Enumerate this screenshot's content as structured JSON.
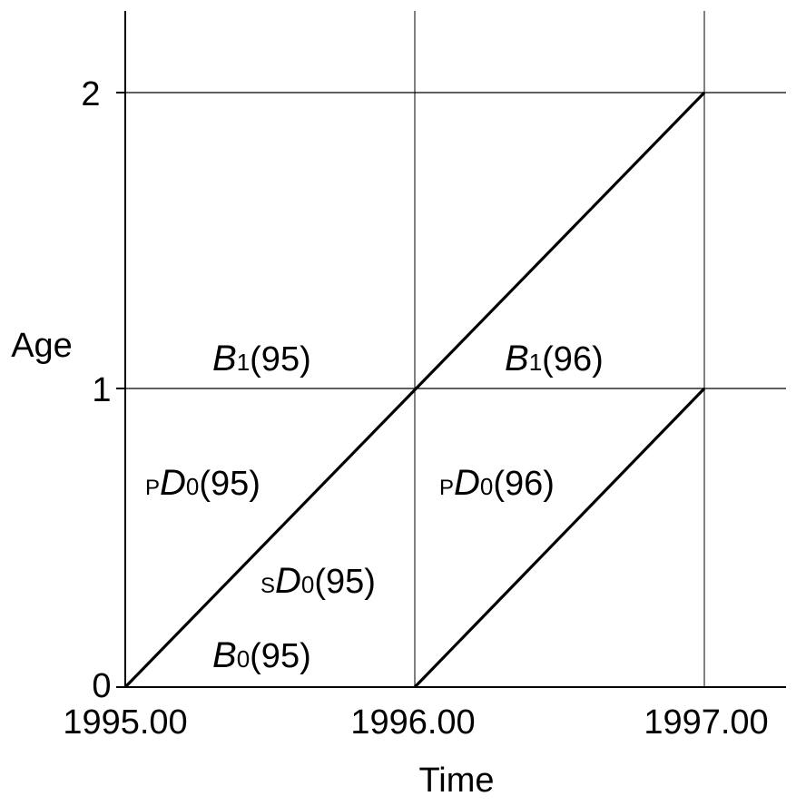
{
  "diagram": {
    "axes": {
      "x_label": "Time",
      "y_label": "Age",
      "x_ticks": [
        "1995.00",
        "1996.00",
        "1997.00"
      ],
      "y_ticks": [
        "0",
        "1",
        "2"
      ]
    },
    "labels": [
      {
        "id": "b1-95",
        "pre": "",
        "main": "B",
        "sub": "1",
        "arg": "(95)"
      },
      {
        "id": "b1-96",
        "pre": "",
        "main": "B",
        "sub": "1",
        "arg": "(96)"
      },
      {
        "id": "pd0-95",
        "pre": "P",
        "main": "D",
        "sub": "0",
        "arg": "(95)"
      },
      {
        "id": "pd0-96",
        "pre": "P",
        "main": "D",
        "sub": "0",
        "arg": "(96)"
      },
      {
        "id": "sd0-95",
        "pre": "S",
        "main": "D",
        "sub": "0",
        "arg": "(95)"
      },
      {
        "id": "b0-95",
        "pre": "",
        "main": "B",
        "sub": "0",
        "arg": "(95)"
      }
    ],
    "life_lines": [
      {
        "from": [
          1995.0,
          0
        ],
        "to": [
          1997.0,
          2
        ]
      },
      {
        "from": [
          1996.0,
          0
        ],
        "to": [
          1997.0,
          1
        ]
      }
    ]
  }
}
